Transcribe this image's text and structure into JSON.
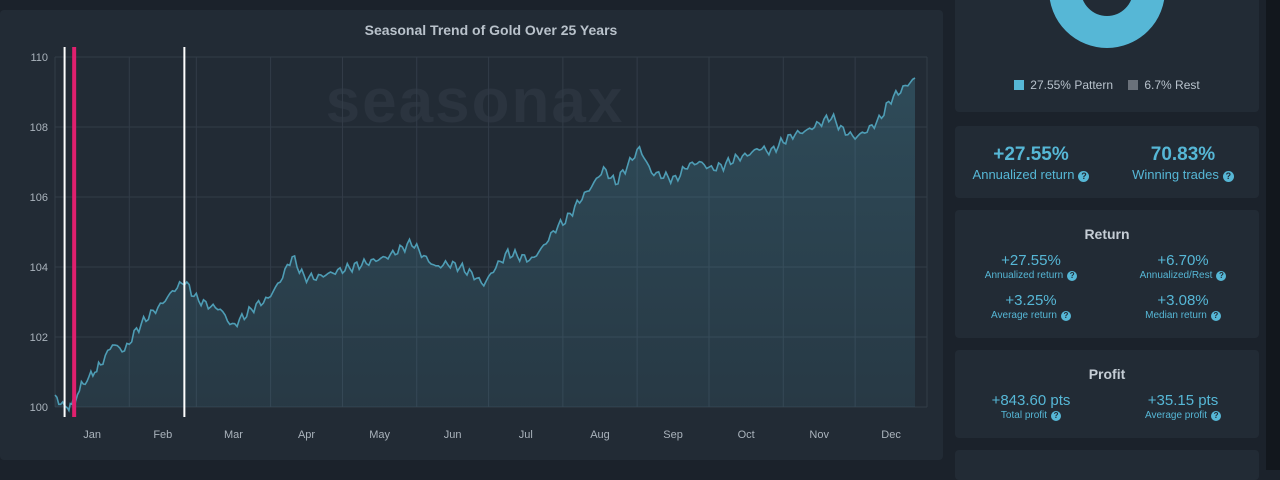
{
  "chart_data": {
    "type": "area",
    "title": "Seasonal Trend of Gold Over 25 Years",
    "watermark": "seasonax",
    "ylim": [
      100,
      110
    ],
    "yticks": [
      "100",
      "102",
      "104",
      "106",
      "108",
      "110"
    ],
    "xticks": [
      "Jan",
      "Feb",
      "Mar",
      "Apr",
      "May",
      "Jun",
      "Jul",
      "Aug",
      "Sep",
      "Oct",
      "Nov",
      "Dec"
    ],
    "grid": true,
    "series": [
      {
        "color": "#4e9db5",
        "points": [
          [
            1,
            100.3
          ],
          [
            5,
            100.0
          ],
          [
            8,
            100.05
          ],
          [
            12,
            100.6
          ],
          [
            16,
            100.9
          ],
          [
            20,
            101.2
          ],
          [
            25,
            101.8
          ],
          [
            30,
            101.6
          ],
          [
            35,
            102.2
          ],
          [
            40,
            102.6
          ],
          [
            45,
            102.9
          ],
          [
            50,
            103.3
          ],
          [
            55,
            103.6
          ],
          [
            60,
            103.1
          ],
          [
            65,
            102.9
          ],
          [
            70,
            102.8
          ],
          [
            75,
            102.3
          ],
          [
            80,
            102.6
          ],
          [
            85,
            102.9
          ],
          [
            90,
            103.1
          ],
          [
            95,
            103.6
          ],
          [
            100,
            104.3
          ],
          [
            105,
            103.7
          ],
          [
            110,
            103.7
          ],
          [
            115,
            103.8
          ],
          [
            120,
            103.9
          ],
          [
            125,
            104.0
          ],
          [
            130,
            104.1
          ],
          [
            135,
            104.2
          ],
          [
            140,
            104.3
          ],
          [
            145,
            104.5
          ],
          [
            150,
            104.7
          ],
          [
            155,
            104.3
          ],
          [
            160,
            104.0
          ],
          [
            165,
            104.1
          ],
          [
            170,
            104.0
          ],
          [
            175,
            103.8
          ],
          [
            180,
            103.5
          ],
          [
            185,
            104.0
          ],
          [
            190,
            104.4
          ],
          [
            195,
            104.3
          ],
          [
            200,
            104.2
          ],
          [
            205,
            104.6
          ],
          [
            210,
            105.1
          ],
          [
            215,
            105.4
          ],
          [
            220,
            105.9
          ],
          [
            225,
            106.3
          ],
          [
            230,
            106.8
          ],
          [
            235,
            106.4
          ],
          [
            240,
            106.9
          ],
          [
            245,
            107.4
          ],
          [
            250,
            106.7
          ],
          [
            255,
            106.6
          ],
          [
            260,
            106.5
          ],
          [
            265,
            106.9
          ],
          [
            270,
            107.0
          ],
          [
            275,
            106.8
          ],
          [
            280,
            106.9
          ],
          [
            285,
            107.1
          ],
          [
            290,
            107.2
          ],
          [
            295,
            107.4
          ],
          [
            300,
            107.3
          ],
          [
            305,
            107.6
          ],
          [
            310,
            107.8
          ],
          [
            315,
            107.9
          ],
          [
            320,
            108.1
          ],
          [
            325,
            108.3
          ],
          [
            330,
            107.9
          ],
          [
            335,
            107.7
          ],
          [
            340,
            107.9
          ],
          [
            345,
            108.2
          ],
          [
            350,
            108.8
          ],
          [
            355,
            109.1
          ],
          [
            360,
            109.4
          ]
        ]
      }
    ],
    "highlight_markers": [
      {
        "day": 5,
        "color": "#ffffff"
      },
      {
        "day": 9,
        "color": "#e0206e"
      },
      {
        "day": 55,
        "color": "#ffffff"
      }
    ]
  },
  "donut": {
    "pattern_color": "#56b7d6",
    "rest_color": "#6a717a",
    "pattern_label": "27.55% Pattern",
    "rest_label": "6.7% Rest"
  },
  "stats": {
    "annualized_value": "+27.55%",
    "annualized_label": "Annualized return",
    "winning_value": "70.83%",
    "winning_label": "Winning trades"
  },
  "return": {
    "title": "Return",
    "items": [
      {
        "value": "+27.55%",
        "label": "Annualized return"
      },
      {
        "value": "+6.70%",
        "label": "Annualized/Rest"
      },
      {
        "value": "+3.25%",
        "label": "Average return"
      },
      {
        "value": "+3.08%",
        "label": "Median return"
      }
    ]
  },
  "profit": {
    "title": "Profit",
    "items": [
      {
        "value": "+843.60 pts",
        "label": "Total profit"
      },
      {
        "value": "+35.15 pts",
        "label": "Average profit"
      }
    ]
  },
  "help_glyph": "?"
}
